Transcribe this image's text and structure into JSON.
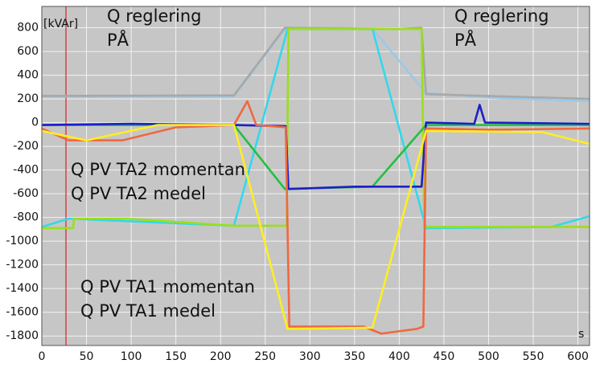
{
  "chart_data": {
    "type": "line",
    "y_unit": "[kVAr]",
    "x_unit": "s",
    "annotations": [
      [
        "Q reglering",
        "PÅ"
      ],
      [
        "Q reglering",
        "PÅ"
      ]
    ],
    "marker_x": 27,
    "marker_color": "#e02020",
    "xlim": [
      0,
      613
    ],
    "ylim": [
      -1880,
      980
    ],
    "xticks": [
      0,
      50,
      100,
      150,
      200,
      250,
      300,
      350,
      400,
      450,
      500,
      550,
      600
    ],
    "yticks": [
      800,
      600,
      400,
      200,
      0,
      -200,
      -400,
      -600,
      -800,
      -1000,
      -1200,
      -1400,
      -1600,
      -1800
    ],
    "grid": true,
    "background": "#c6c6c6",
    "series": [
      {
        "color": "#9cc8e8",
        "x": [
          0,
          215,
          272,
          370,
          430,
          500,
          613
        ],
        "values": [
          220,
          220,
          790,
          790,
          250,
          210,
          180
        ]
      },
      {
        "color": "#a8a8a8",
        "x": [
          0,
          215,
          272,
          400,
          425,
          430,
          613
        ],
        "values": [
          225,
          230,
          800,
          790,
          800,
          240,
          200
        ]
      },
      {
        "color": "#33d8ea",
        "x": [
          0,
          30,
          215,
          275,
          370,
          430,
          570,
          613
        ],
        "values": [
          -880,
          -810,
          -870,
          790,
          790,
          -890,
          -880,
          -790
        ]
      },
      {
        "color": "#99e01a",
        "x": [
          0,
          35,
          36,
          95,
          215,
          274,
          276,
          425,
          428,
          613
        ],
        "values": [
          -890,
          -890,
          -810,
          -810,
          -870,
          -870,
          790,
          790,
          -880,
          -880
        ]
      },
      {
        "name": "Q PV TA2 medel",
        "color": "#22c040",
        "x": [
          0,
          215,
          272,
          370,
          430,
          613
        ],
        "values": [
          -20,
          -20,
          -560,
          -540,
          -20,
          -20
        ]
      },
      {
        "name": "Q PV TA2 momentan",
        "color": "#1a20c8",
        "x": [
          0,
          100,
          215,
          273,
          276,
          350,
          425,
          430,
          484,
          490,
          496,
          613
        ],
        "values": [
          -20,
          -10,
          -20,
          -30,
          -560,
          -540,
          -540,
          0,
          -10,
          150,
          0,
          -10
        ]
      },
      {
        "name": "Q PV TA1 momentan",
        "color": "#f06840",
        "x": [
          0,
          30,
          90,
          150,
          215,
          230,
          240,
          273,
          277,
          360,
          380,
          420,
          427,
          430,
          500,
          613
        ],
        "values": [
          -50,
          -150,
          -150,
          -40,
          -20,
          180,
          -20,
          -40,
          -1720,
          -1720,
          -1780,
          -1740,
          -1720,
          -50,
          -60,
          -50
        ]
      },
      {
        "name": "Q PV TA1 medel",
        "color": "#ffee22",
        "x": [
          0,
          50,
          130,
          215,
          275,
          370,
          430,
          560,
          613
        ],
        "values": [
          -70,
          -150,
          -20,
          -20,
          -1740,
          -1730,
          -70,
          -80,
          -180
        ]
      }
    ]
  }
}
